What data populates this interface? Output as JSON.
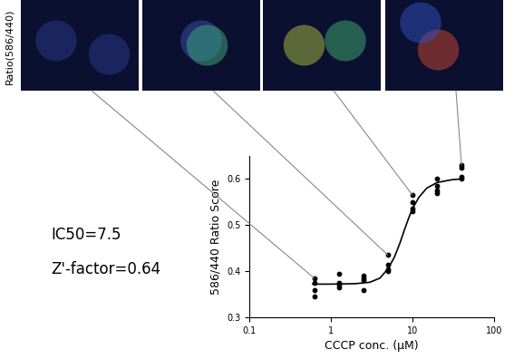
{
  "chart_data": {
    "type": "scatter",
    "x": [
      0.625,
      0.625,
      0.625,
      0.625,
      1.25,
      1.25,
      1.25,
      1.25,
      2.5,
      2.5,
      2.5,
      2.5,
      5,
      5,
      5,
      5,
      10,
      10,
      10,
      10,
      20,
      20,
      20,
      20,
      40,
      40,
      40,
      40
    ],
    "values": [
      0.385,
      0.375,
      0.36,
      0.345,
      0.395,
      0.375,
      0.37,
      0.365,
      0.39,
      0.385,
      0.38,
      0.36,
      0.435,
      0.415,
      0.405,
      0.4,
      0.565,
      0.55,
      0.535,
      0.53,
      0.6,
      0.585,
      0.575,
      0.57,
      0.63,
      0.625,
      0.605,
      0.6
    ],
    "color": "#000000",
    "marker": "circle",
    "fit": {
      "type": "line",
      "color": "#000000",
      "line_style": "solid",
      "x": [
        0.6,
        1,
        2,
        3,
        4,
        5,
        6,
        7,
        8,
        9,
        10,
        12,
        15,
        20,
        30,
        40
      ],
      "values": [
        0.372,
        0.372,
        0.373,
        0.376,
        0.385,
        0.405,
        0.43,
        0.46,
        0.49,
        0.515,
        0.535,
        0.56,
        0.58,
        0.592,
        0.598,
        0.6
      ]
    },
    "log": "x",
    "xlim": [
      0.1,
      100
    ],
    "ylim": [
      0.3,
      0.65
    ],
    "xticks": [
      0.1,
      1,
      10,
      100
    ],
    "yticks": [
      0.3,
      0.4,
      0.5,
      0.6
    ],
    "xlabel": "CCCP conc. (μM)",
    "ylabel": "586/440 Ratio Score",
    "annotations": [
      "IC50=7.5",
      "Z'-factor=0.64"
    ],
    "images": {
      "label": "Ratio(586/440)",
      "linked_x": [
        0.625,
        5,
        10,
        40
      ]
    }
  }
}
